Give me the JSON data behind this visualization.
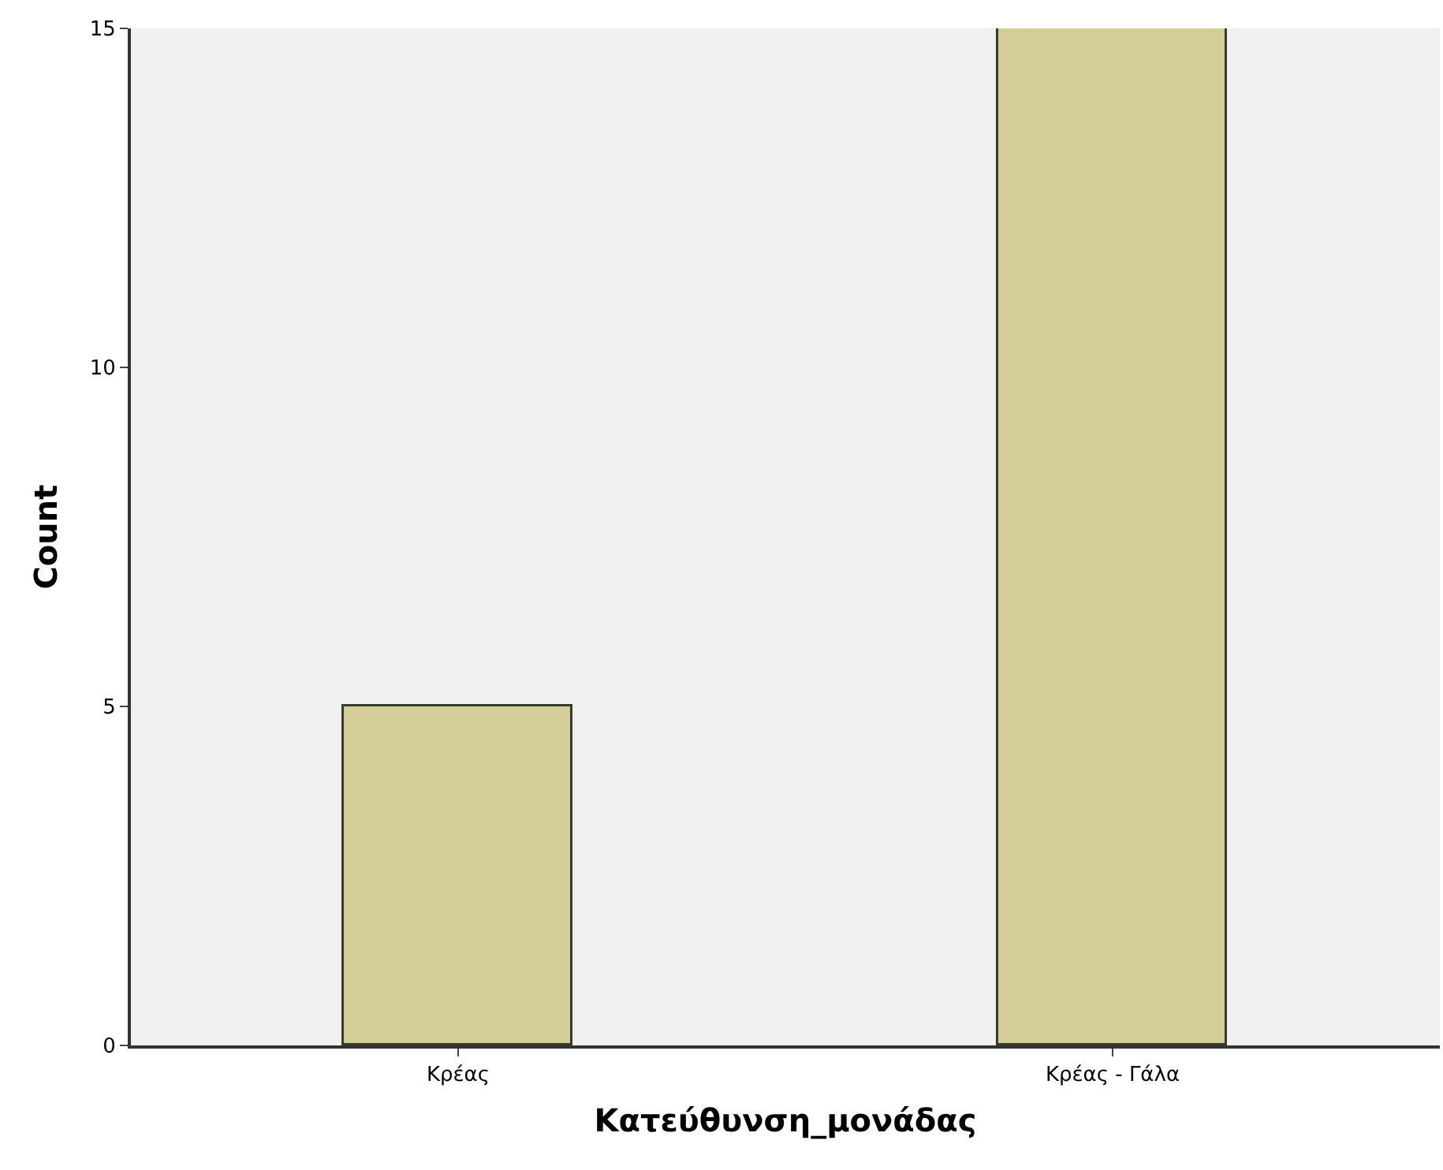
{
  "chart_data": {
    "type": "bar",
    "xlabel": "Κατεύθυνση_μονάδας",
    "ylabel": "Count",
    "categories": [
      "Κρέας",
      "Κρέας - Γάλα"
    ],
    "values": [
      5,
      15
    ],
    "color": "#d3ce97",
    "ylim": [
      0,
      15
    ],
    "yticks": [
      0,
      5,
      10,
      15
    ],
    "grid": false
  }
}
